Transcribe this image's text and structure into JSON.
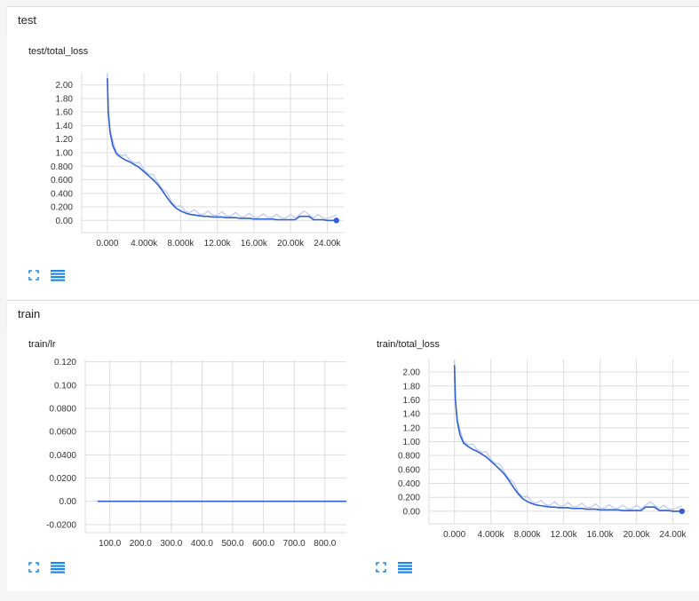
{
  "sections": [
    {
      "title": "test"
    },
    {
      "title": "train"
    }
  ],
  "colors": {
    "line": "#2f5fd0",
    "raw": "#b8c8ee",
    "grid": "#dddddd",
    "text": "#333333"
  },
  "buttons": {
    "expand_icon": "expand-icon",
    "data_icon": "list-icon"
  },
  "chart_data": [
    {
      "type": "line",
      "title": "test/total_loss",
      "xlabel": "",
      "ylabel": "",
      "xlim": [
        -2800,
        25800
      ],
      "ylim": [
        -0.18,
        2.18
      ],
      "x_ticks": [
        0,
        4000,
        8000,
        12000,
        16000,
        20000,
        24000
      ],
      "x_tick_labels": [
        "0.000",
        "4.000k",
        "8.000k",
        "12.00k",
        "16.00k",
        "20.00k",
        "24.00k"
      ],
      "y_ticks": [
        0,
        0.2,
        0.4,
        0.6,
        0.8,
        1.0,
        1.2,
        1.4,
        1.6,
        1.8,
        2.0
      ],
      "y_tick_labels": [
        "0.00",
        "0.200",
        "0.400",
        "0.600",
        "0.800",
        "1.00",
        "1.20",
        "1.40",
        "1.60",
        "1.80",
        "2.00"
      ],
      "grid": true,
      "series": [
        {
          "x": [
            0,
            100,
            300,
            600,
            1000,
            1500,
            2000,
            2500,
            3000,
            3500,
            4000,
            4500,
            5000,
            5500,
            6000,
            6500,
            7000,
            7500,
            8000,
            8500,
            9000,
            9500,
            10000,
            10500,
            11000,
            11500,
            12000,
            12500,
            13000,
            13500,
            14000,
            14500,
            15000,
            15500,
            16000,
            16500,
            17000,
            17500,
            18000,
            18500,
            19000,
            19500,
            20000,
            20500,
            21000,
            21500,
            22000,
            22500,
            23000,
            23500,
            24000,
            25000
          ],
          "y": [
            2.1,
            1.6,
            1.3,
            1.1,
            0.98,
            0.93,
            0.89,
            0.86,
            0.82,
            0.78,
            0.72,
            0.66,
            0.6,
            0.53,
            0.44,
            0.34,
            0.25,
            0.18,
            0.14,
            0.11,
            0.09,
            0.08,
            0.07,
            0.06,
            0.06,
            0.05,
            0.05,
            0.05,
            0.04,
            0.04,
            0.04,
            0.03,
            0.03,
            0.03,
            0.02,
            0.02,
            0.02,
            0.02,
            0.02,
            0.01,
            0.01,
            0.01,
            0.01,
            0.01,
            0.06,
            0.06,
            0.06,
            0.01,
            0.01,
            0.01,
            0.0,
            0.0
          ]
        }
      ]
    },
    {
      "type": "line",
      "title": "train/lr",
      "xlabel": "",
      "ylabel": "",
      "xlim": [
        20,
        870
      ],
      "ylim": [
        -0.027,
        0.122
      ],
      "x_ticks": [
        100,
        200,
        300,
        400,
        500,
        600,
        700,
        800
      ],
      "x_tick_labels": [
        "100.0",
        "200.0",
        "300.0",
        "400.0",
        "500.0",
        "600.0",
        "700.0",
        "800.0"
      ],
      "y_ticks": [
        -0.02,
        0,
        0.02,
        0.04,
        0.06,
        0.08,
        0.1,
        0.12
      ],
      "y_tick_labels": [
        "-0.0200",
        "0.00",
        "0.0200",
        "0.0400",
        "0.0600",
        "0.0800",
        "0.100",
        "0.120"
      ],
      "grid": true,
      "series": [
        {
          "x": [
            60,
            870
          ],
          "y": [
            0.0,
            0.0
          ]
        }
      ]
    },
    {
      "type": "line",
      "title": "train/total_loss",
      "xlabel": "",
      "ylabel": "",
      "xlim": [
        -2800,
        25800
      ],
      "ylim": [
        -0.18,
        2.18
      ],
      "x_ticks": [
        0,
        4000,
        8000,
        12000,
        16000,
        20000,
        24000
      ],
      "x_tick_labels": [
        "0.000",
        "4.000k",
        "8.000k",
        "12.00k",
        "16.00k",
        "20.00k",
        "24.00k"
      ],
      "y_ticks": [
        0,
        0.2,
        0.4,
        0.6,
        0.8,
        1.0,
        1.2,
        1.4,
        1.6,
        1.8,
        2.0
      ],
      "y_tick_labels": [
        "0.00",
        "0.200",
        "0.400",
        "0.600",
        "0.800",
        "1.00",
        "1.20",
        "1.40",
        "1.60",
        "1.80",
        "2.00"
      ],
      "grid": true,
      "series": [
        {
          "x": [
            0,
            100,
            300,
            600,
            1000,
            1500,
            2000,
            2500,
            3000,
            3500,
            4000,
            4500,
            5000,
            5500,
            6000,
            6500,
            7000,
            7500,
            8000,
            8500,
            9000,
            9500,
            10000,
            10500,
            11000,
            11500,
            12000,
            12500,
            13000,
            13500,
            14000,
            14500,
            15000,
            15500,
            16000,
            16500,
            17000,
            17500,
            18000,
            18500,
            19000,
            19500,
            20000,
            20500,
            21000,
            21500,
            22000,
            22500,
            23000,
            23500,
            24000,
            25000
          ],
          "y": [
            2.1,
            1.6,
            1.3,
            1.1,
            0.98,
            0.93,
            0.89,
            0.86,
            0.82,
            0.78,
            0.72,
            0.66,
            0.6,
            0.53,
            0.44,
            0.34,
            0.25,
            0.18,
            0.14,
            0.11,
            0.09,
            0.08,
            0.07,
            0.06,
            0.06,
            0.05,
            0.05,
            0.05,
            0.04,
            0.04,
            0.04,
            0.03,
            0.03,
            0.03,
            0.02,
            0.02,
            0.02,
            0.02,
            0.02,
            0.01,
            0.01,
            0.01,
            0.01,
            0.01,
            0.06,
            0.06,
            0.06,
            0.01,
            0.01,
            0.01,
            0.0,
            0.0
          ]
        }
      ]
    }
  ]
}
